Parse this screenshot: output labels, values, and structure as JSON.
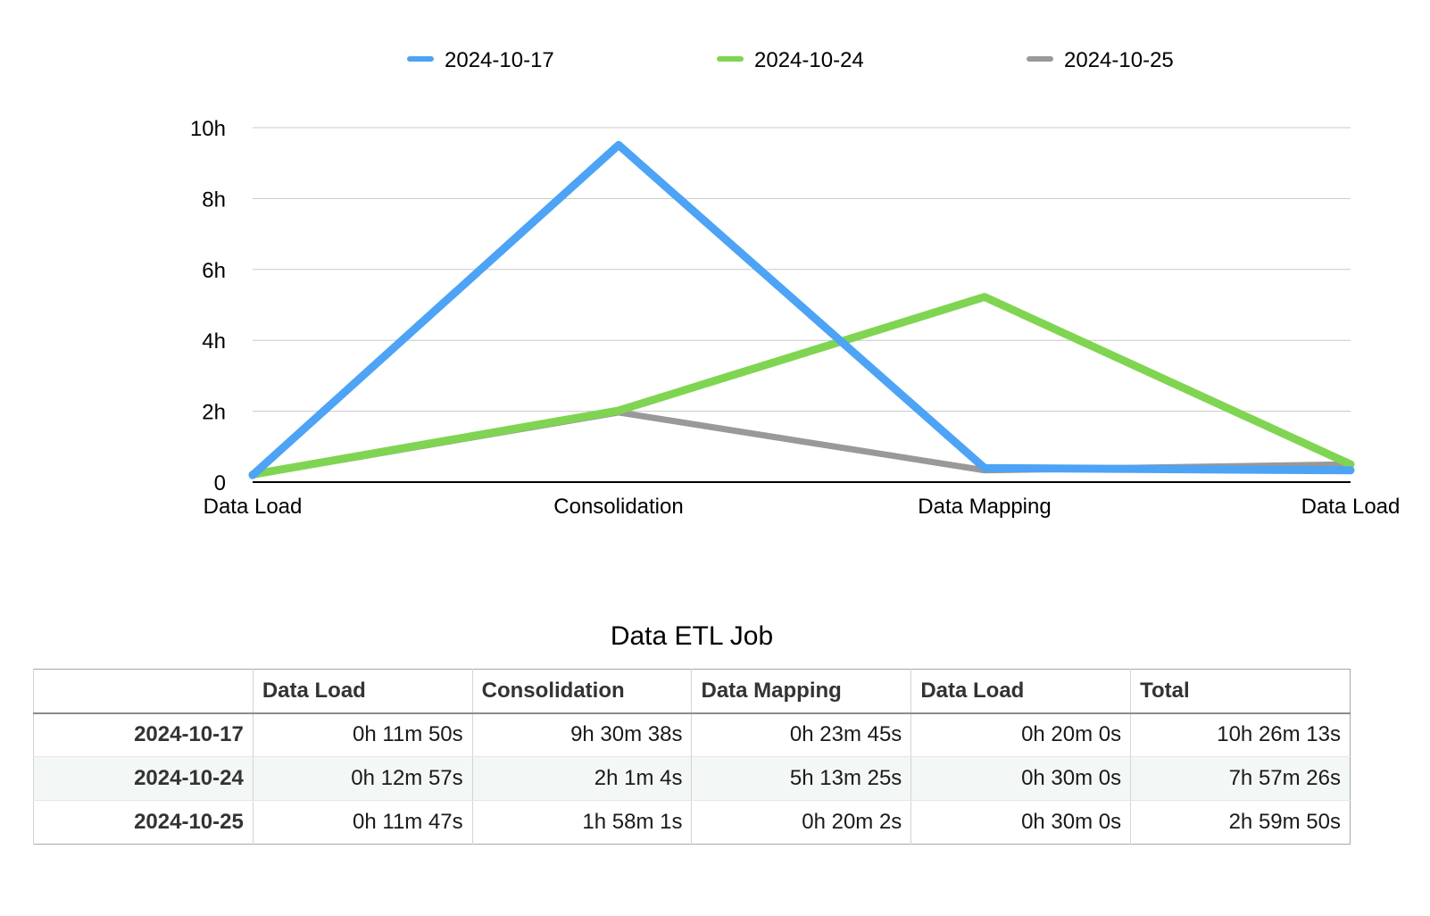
{
  "chart_data": {
    "type": "line",
    "categories": [
      "Data Load",
      "Consolidation",
      "Data Mapping",
      "Data Load"
    ],
    "ylim": [
      0,
      10
    ],
    "y_unit": "hours",
    "y_ticks": [
      0,
      2,
      4,
      6,
      8,
      10
    ],
    "y_tick_labels": [
      "0",
      "2h",
      "4h",
      "6h",
      "8h",
      "10h"
    ],
    "grid": true,
    "legend_position": "top-center",
    "series": [
      {
        "name": "2024-10-17",
        "color": "#4da3f5",
        "values": [
          0.197,
          9.511,
          0.396,
          0.333
        ]
      },
      {
        "name": "2024-10-24",
        "color": "#7fd551",
        "values": [
          0.216,
          2.018,
          5.224,
          0.5
        ]
      },
      {
        "name": "2024-10-25",
        "color": "#999999",
        "values": [
          0.196,
          1.967,
          0.334,
          0.5
        ]
      }
    ]
  },
  "table": {
    "title": "Data ETL Job",
    "headers": [
      "",
      "Data Load",
      "Consolidation",
      "Data Mapping",
      "Data Load",
      "Total"
    ],
    "rows": [
      {
        "label": "2024-10-17",
        "cells": [
          "0h 11m 50s",
          "9h 30m 38s",
          "0h 23m 45s",
          "0h 20m 0s",
          "10h 26m 13s"
        ]
      },
      {
        "label": "2024-10-24",
        "cells": [
          "0h 12m 57s",
          "2h 1m 4s",
          "5h 13m 25s",
          "0h 30m 0s",
          "7h 57m 26s"
        ]
      },
      {
        "label": "2024-10-25",
        "cells": [
          "0h 11m 47s",
          "1h 58m 1s",
          "0h 20m 2s",
          "0h 30m 0s",
          "2h 59m 50s"
        ]
      }
    ]
  }
}
